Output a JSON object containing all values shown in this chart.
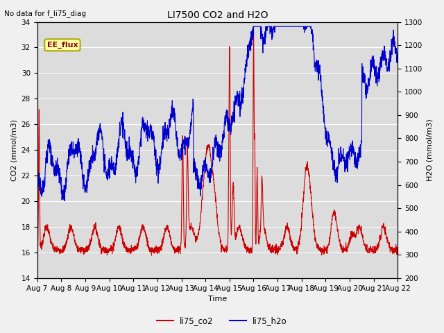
{
  "title": "LI7500 CO2 and H2O",
  "top_left_text": "No data for f_li75_diag",
  "xlabel": "Time",
  "ylabel_left": "CO2 (mmol/m3)",
  "ylabel_right": "H2O (mmol/m3)",
  "ylim_left": [
    14,
    34
  ],
  "ylim_right": [
    200,
    1300
  ],
  "yticks_left": [
    14,
    16,
    18,
    20,
    22,
    24,
    26,
    28,
    30,
    32,
    34
  ],
  "yticks_right": [
    200,
    300,
    400,
    500,
    600,
    700,
    800,
    900,
    1000,
    1100,
    1200,
    1300
  ],
  "annotation_text": "EE_flux",
  "plot_bg_color": "#dcdcdc",
  "fig_bg_color": "#f0f0f0",
  "co2_color": "#cc0000",
  "h2o_color": "#0000cc",
  "linewidth": 0.8,
  "xtick_dates": [
    "Aug 7",
    "Aug 8",
    "Aug 9",
    "Aug 10",
    "Aug 11",
    "Aug 12",
    "Aug 13",
    "Aug 14",
    "Aug 15",
    "Aug 16",
    "Aug 17",
    "Aug 18",
    "Aug 19",
    "Aug 20",
    "Aug 21",
    "Aug 22"
  ],
  "n_points": 2160
}
